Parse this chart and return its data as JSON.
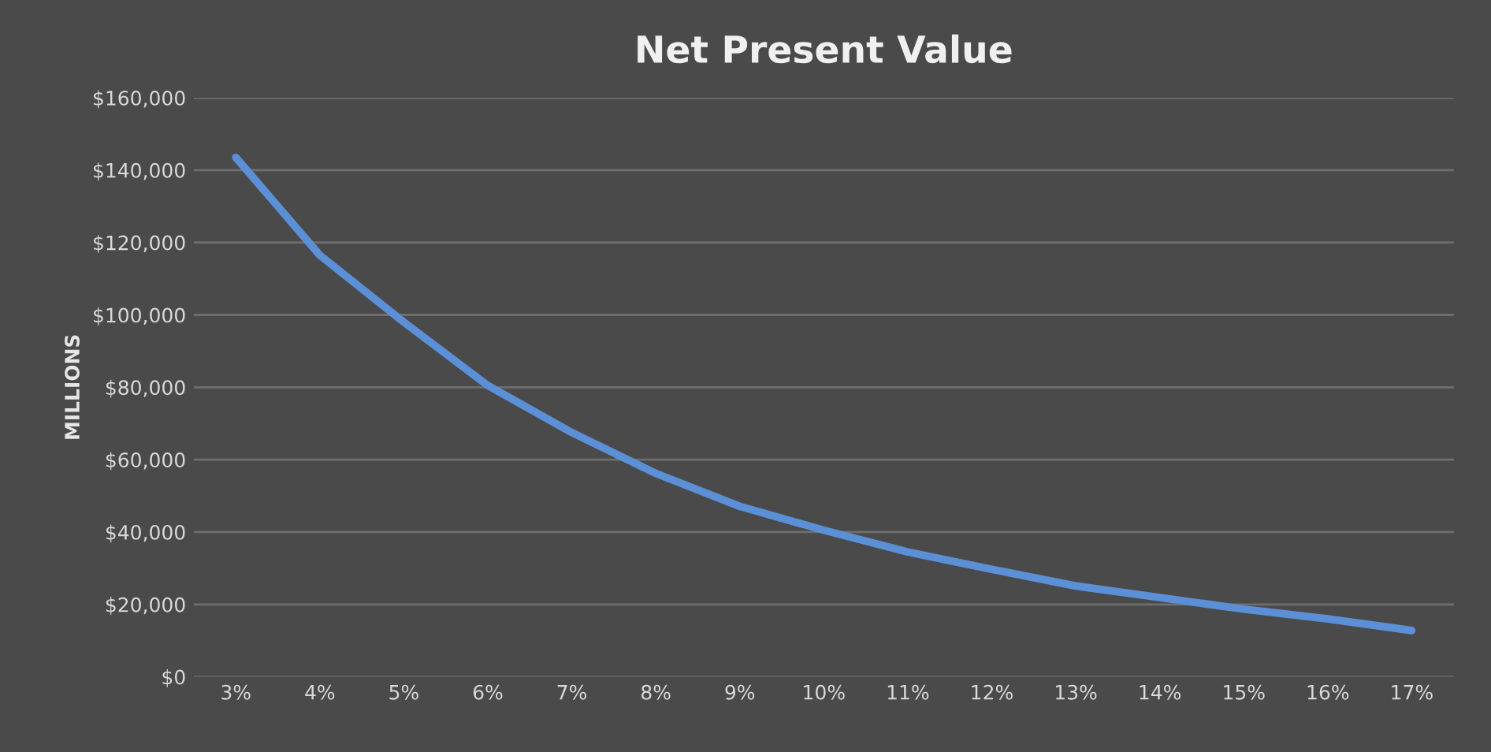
{
  "chart_data": {
    "type": "line",
    "title": "Net Present Value",
    "ylabel": "MILLIONS",
    "categories": [
      "3%",
      "4%",
      "5%",
      "6%",
      "7%",
      "8%",
      "9%",
      "10%",
      "11%",
      "12%",
      "13%",
      "14%",
      "15%",
      "16%",
      "17%"
    ],
    "series": [
      {
        "color": "#5b8fd6",
        "values": [
          143500,
          116500,
          98000,
          80500,
          67500,
          56200,
          47100,
          40500,
          34500,
          29700,
          25100,
          21900,
          18700,
          16000,
          12800
        ]
      }
    ],
    "ylim": [
      0,
      160000
    ],
    "yticks": [
      {
        "value": 0,
        "label": "$0"
      },
      {
        "value": 20000,
        "label": "$20,000"
      },
      {
        "value": 40000,
        "label": "$40,000"
      },
      {
        "value": 60000,
        "label": "$60,000"
      },
      {
        "value": 80000,
        "label": "$80,000"
      },
      {
        "value": 100000,
        "label": "$100,000"
      },
      {
        "value": 120000,
        "label": "$120,000"
      },
      {
        "value": 140000,
        "label": "$140,000"
      },
      {
        "value": 160000,
        "label": "$160,000"
      }
    ],
    "grid": "y",
    "marker": "none",
    "line_style": "solid"
  }
}
